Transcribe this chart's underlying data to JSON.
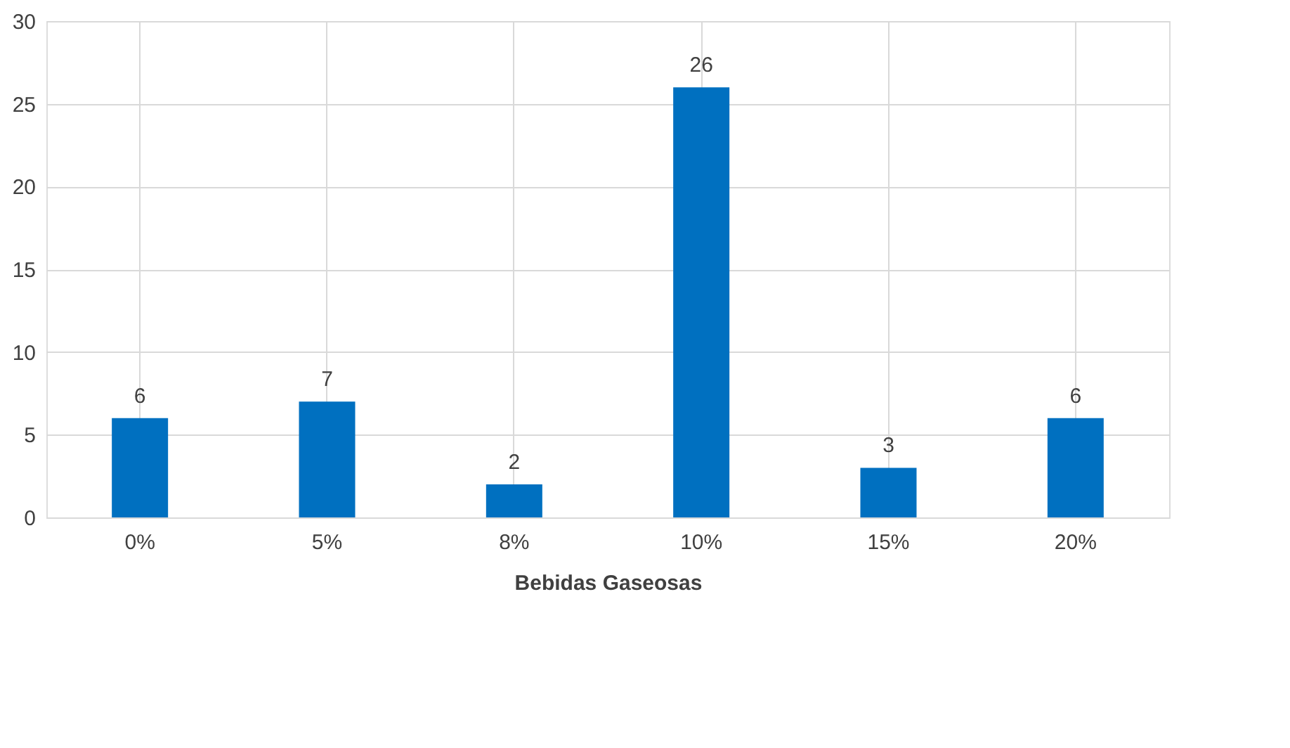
{
  "chart_data": {
    "type": "bar",
    "xlabel": "Bebidas Gaseosas",
    "categories": [
      "0%",
      "5%",
      "8%",
      "10%",
      "15%",
      "20%"
    ],
    "values": [
      6,
      7,
      2,
      26,
      3,
      6
    ],
    "color": "#0070c0",
    "ylim": [
      0,
      30
    ],
    "yticks": [
      0,
      5,
      10,
      15,
      20,
      25,
      30
    ],
    "grid": true,
    "data_labels": true
  }
}
